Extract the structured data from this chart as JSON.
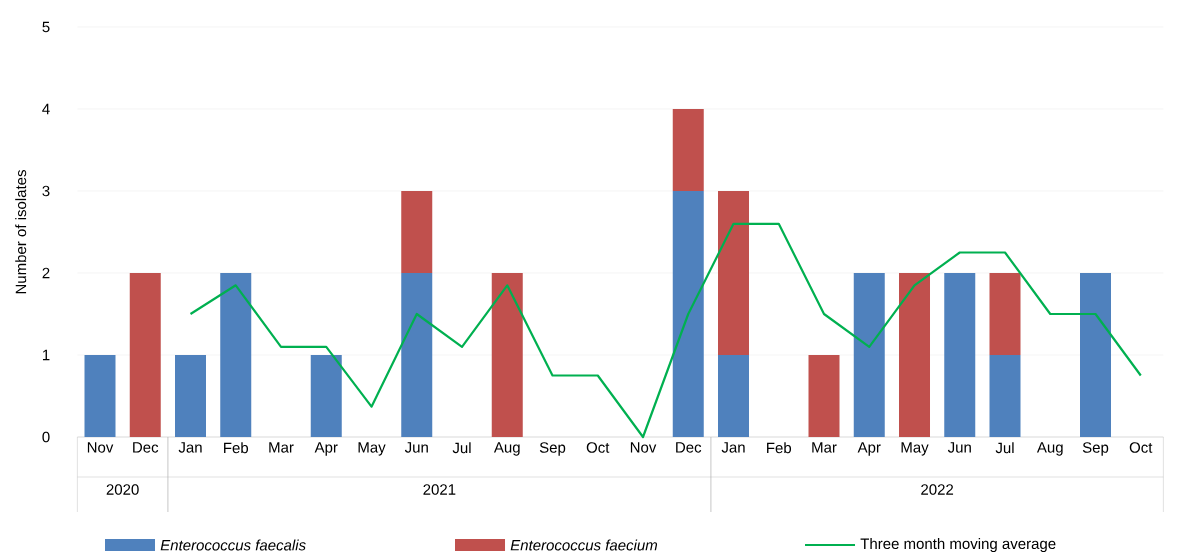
{
  "chart_data": {
    "type": "bar",
    "stacked": true,
    "ylabel": "Number of isolates",
    "categories": [
      "Nov",
      "Dec",
      "Jan",
      "Feb",
      "Mar",
      "Apr",
      "May",
      "Jun",
      "Jul",
      "Aug",
      "Sep",
      "Oct",
      "Nov",
      "Dec",
      "Jan",
      "Feb",
      "Mar",
      "Apr",
      "May",
      "Jun",
      "Jul",
      "Aug",
      "Sep",
      "Oct"
    ],
    "series": [
      {
        "name": "Enterococcus faecalis",
        "color": "#4f81bd",
        "values": [
          1,
          0,
          1,
          2,
          0,
          1,
          0,
          2,
          0,
          0,
          0,
          0,
          0,
          3,
          1,
          0,
          0,
          2,
          0,
          2,
          1,
          0,
          2,
          0
        ]
      },
      {
        "name": "Enterococcus faecium",
        "color": "#c0504d",
        "values": [
          0,
          2,
          0,
          0,
          0,
          0,
          0,
          1,
          0,
          2,
          0,
          0,
          0,
          1,
          2,
          0,
          1,
          0,
          2,
          0,
          1,
          0,
          0,
          0
        ]
      },
      {
        "name": "Three month moving average",
        "type": "line",
        "color": "#00b050",
        "values": [
          null,
          null,
          1.5,
          1.85,
          1.1,
          1.1,
          0.37,
          1.5,
          1.1,
          1.85,
          0.75,
          0.75,
          0,
          1.5,
          2.6,
          2.6,
          1.5,
          1.1,
          1.85,
          2.25,
          2.25,
          1.5,
          1.5,
          0.75
        ]
      }
    ],
    "annotations": [
      "2020",
      "2021",
      "2022"
    ],
    "ylim": [
      0,
      5
    ],
    "yticks": [
      0,
      1,
      2,
      3,
      4,
      5
    ],
    "grid": "y",
    "legend": "bottom"
  }
}
